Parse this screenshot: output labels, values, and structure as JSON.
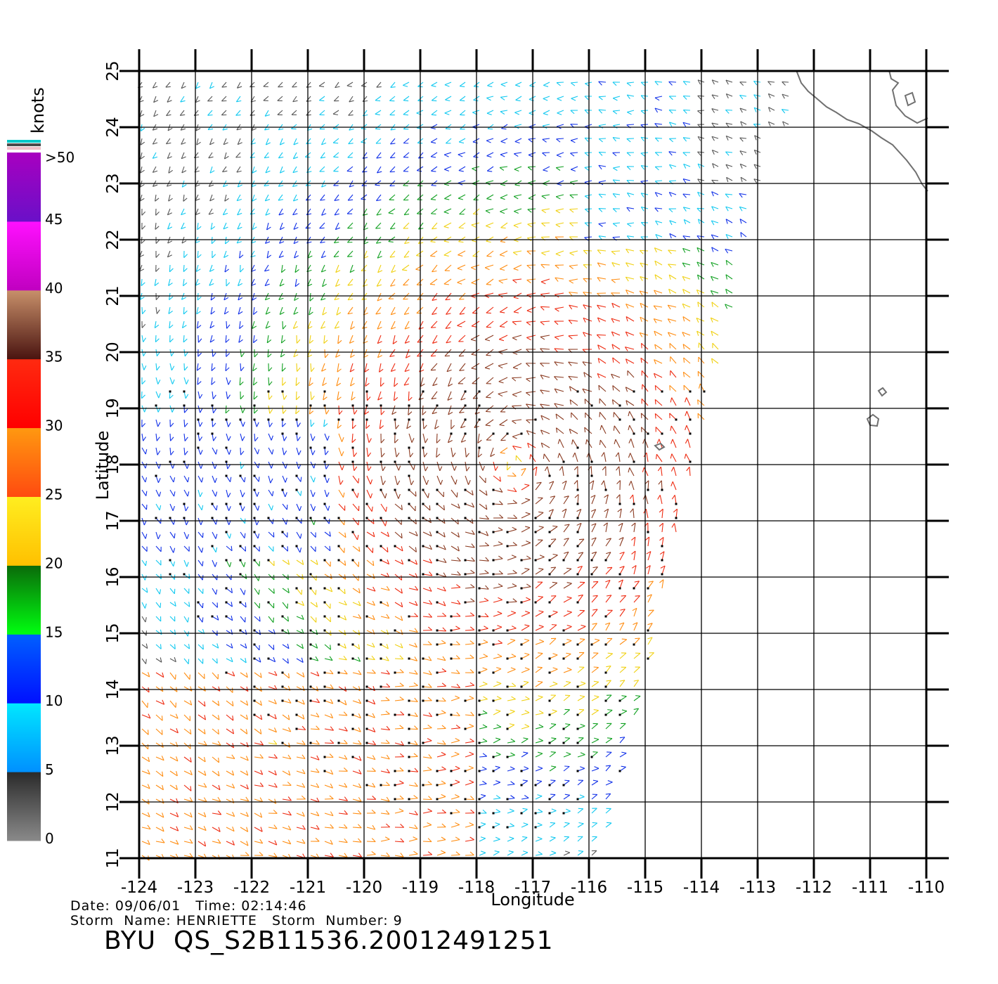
{
  "legend": {
    "unit": "knots",
    "labels": [
      ">50",
      "45",
      "40",
      "35",
      "30",
      "25",
      "20",
      "15",
      "10",
      "5",
      "0"
    ],
    "bands": [
      {
        "from": 0,
        "to": 5,
        "top": "#2a2a2a",
        "bottom": "#8a8a8a"
      },
      {
        "from": 5,
        "to": 10,
        "top": "#00e8ff",
        "bottom": "#0090ff"
      },
      {
        "from": 10,
        "to": 15,
        "top": "#0060ff",
        "bottom": "#0010ff"
      },
      {
        "from": 15,
        "to": 20,
        "top": "#0a6a0a",
        "bottom": "#00ff10"
      },
      {
        "from": 20,
        "to": 25,
        "top": "#ffee20",
        "bottom": "#ffc000"
      },
      {
        "from": 25,
        "to": 30,
        "top": "#ff9910",
        "bottom": "#ff4a10"
      },
      {
        "from": 30,
        "to": 35,
        "top": "#ff2a10",
        "bottom": "#ff0000"
      },
      {
        "from": 35,
        "to": 40,
        "top": "#c8906a",
        "bottom": "#4a1410"
      },
      {
        "from": 40,
        "to": 45,
        "top": "#ff10ff",
        "bottom": "#c000c0"
      },
      {
        "from": 45,
        "to": 50,
        "top": "#a800c0",
        "bottom": "#6a10c8"
      }
    ],
    "cap_colors": [
      "#00c8c8",
      "#4a4a4a",
      "#f0c0c8"
    ]
  },
  "map": {
    "xlabel": "Longitude",
    "ylabel": "Latitude",
    "lon_range": [
      -124,
      -110
    ],
    "lat_range": [
      11,
      25
    ],
    "lon_ticks": [
      "-124",
      "-123",
      "-122",
      "-121",
      "-120",
      "-119",
      "-118",
      "-117",
      "-116",
      "-115",
      "-114",
      "-113",
      "-112",
      "-111",
      "-110"
    ],
    "lat_ticks": [
      "11",
      "12",
      "13",
      "14",
      "15",
      "16",
      "17",
      "18",
      "19",
      "20",
      "21",
      "22",
      "23",
      "24",
      "25"
    ],
    "grid": true,
    "storm_center": {
      "lon": -117.3,
      "lat": 18.0
    }
  },
  "info": {
    "date_label": "Date:",
    "date": "09/06/01",
    "time_label": "Time:",
    "time": "02:14:46",
    "storm_name_label": "Storm  Name:",
    "storm_name": "HENRIETTE",
    "storm_number_label": "Storm  Number:",
    "storm_number": "9",
    "product_id": "BYU  QS_S2B11536.20012491251"
  }
}
